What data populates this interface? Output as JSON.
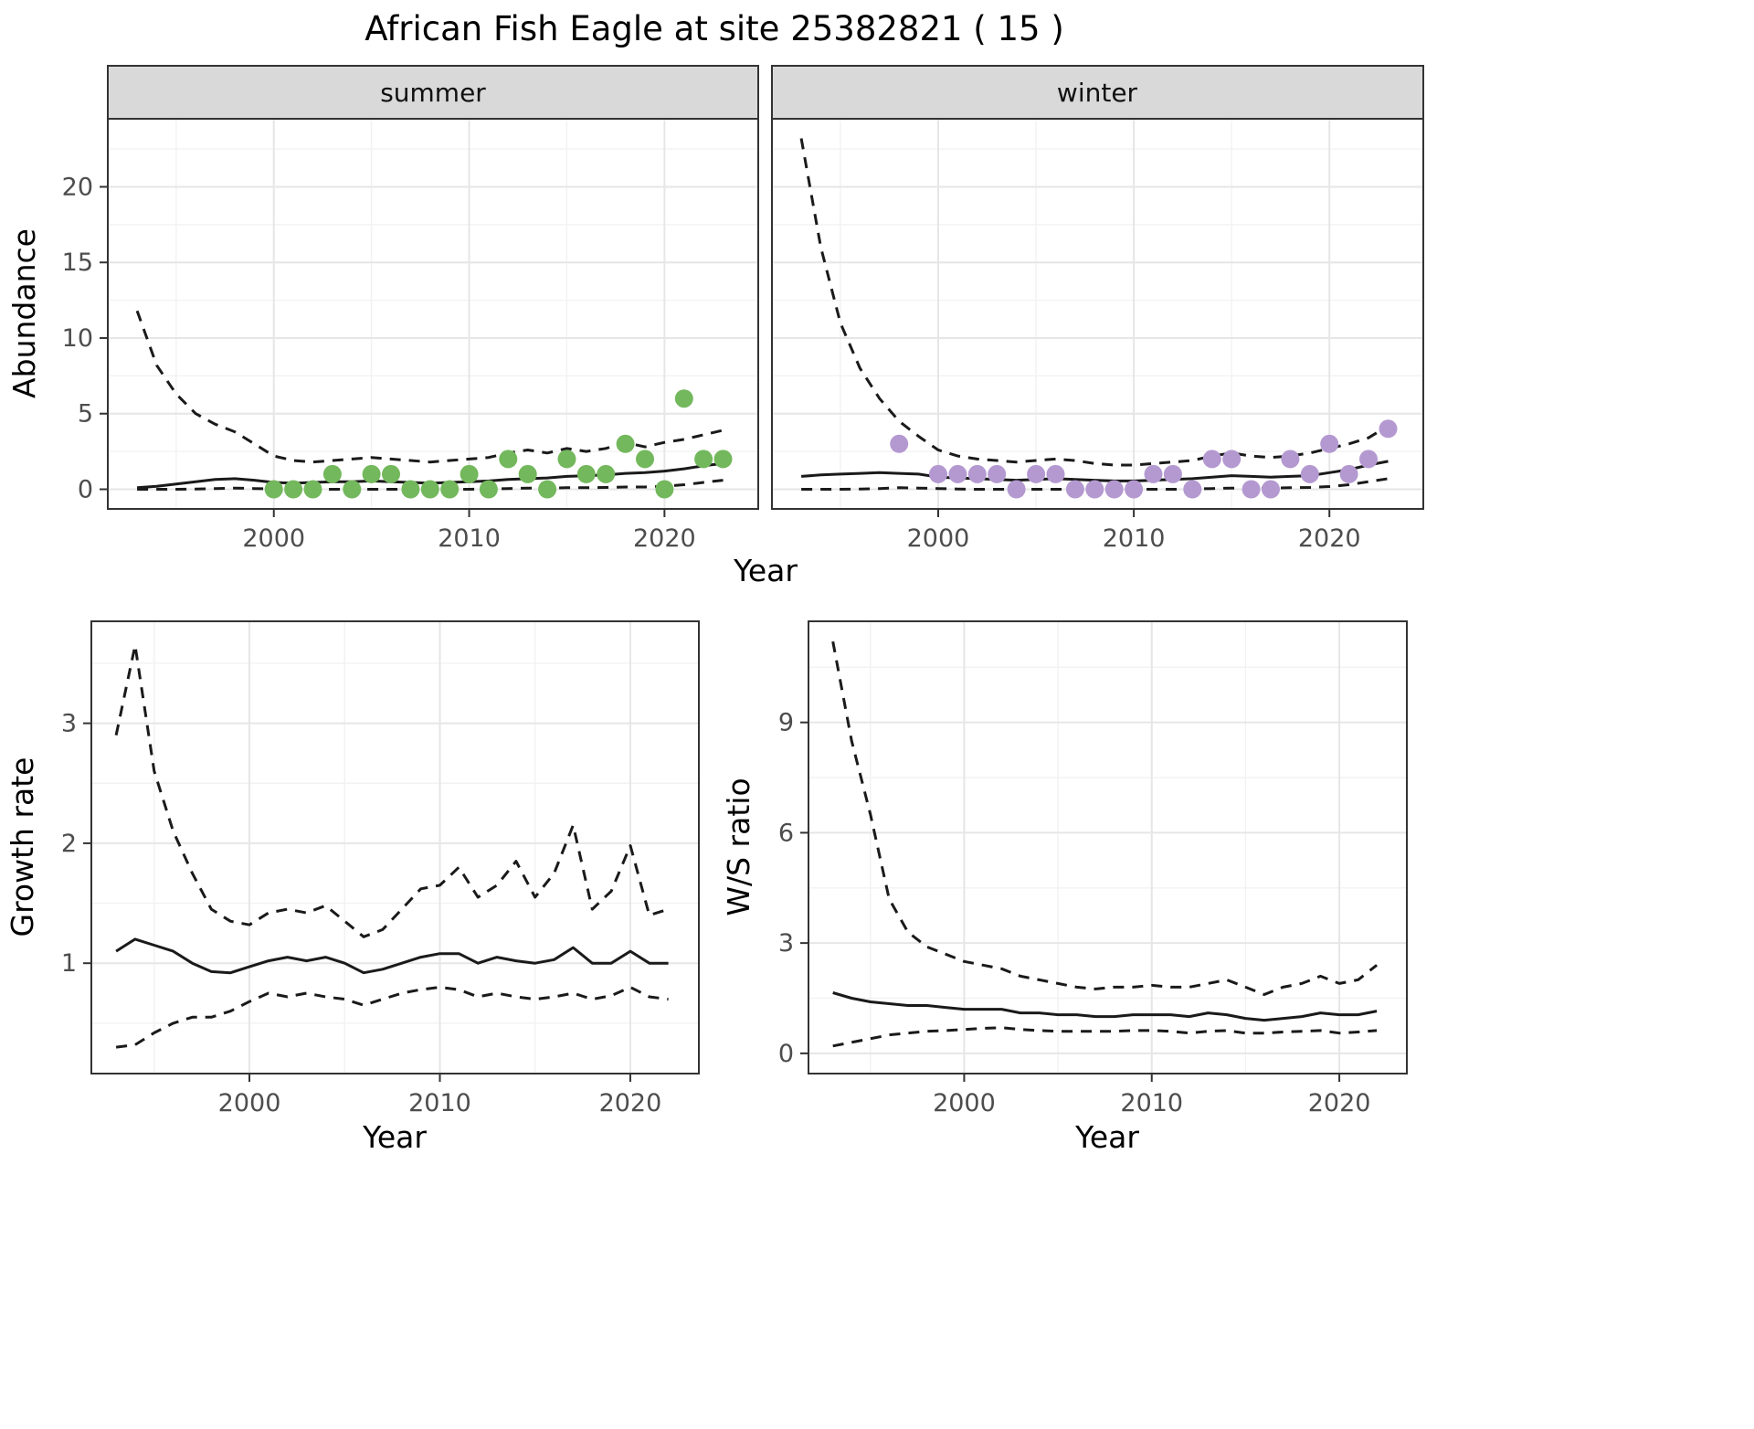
{
  "title": "African Fish Eagle at site 25382821 ( 15 )",
  "colors": {
    "summer_points": "#73b85c",
    "winter_points": "#b499d1",
    "line": "#1a1a1a",
    "strip_background": "#d9d9d9",
    "panel_border": "#333333",
    "grid_major": "#e6e6e6",
    "grid_minor": "#f2f2f2"
  },
  "chart_data": [
    {
      "type": "line",
      "facet": "summer",
      "ylabel": "Abundance",
      "xlabel": "Year",
      "xlim": [
        1991.5,
        2024.8
      ],
      "ylim": [
        -1.3,
        24.5
      ],
      "xticks": [
        2000,
        2010,
        2020
      ],
      "yticks": [
        0,
        5,
        10,
        15,
        20
      ],
      "grid": true,
      "legend": "none",
      "series": [
        {
          "name": "upper_ci",
          "style": "dashed",
          "x": [
            1993,
            1994,
            1995,
            1996,
            1997,
            1998,
            1999,
            2000,
            2001,
            2002,
            2003,
            2004,
            2005,
            2006,
            2007,
            2008,
            2009,
            2010,
            2011,
            2012,
            2013,
            2014,
            2015,
            2016,
            2017,
            2018,
            2019,
            2020,
            2021,
            2022,
            2023
          ],
          "y": [
            11.8,
            8.2,
            6.3,
            5,
            4.3,
            3.8,
            3,
            2.2,
            1.9,
            1.8,
            1.9,
            2,
            2.1,
            2,
            1.9,
            1.8,
            1.9,
            2,
            2.1,
            2.4,
            2.6,
            2.4,
            2.7,
            2.5,
            2.7,
            3.1,
            2.8,
            3.1,
            3.3,
            3.6,
            3.9
          ]
        },
        {
          "name": "median",
          "style": "solid",
          "x": [
            1993,
            1994,
            1995,
            1996,
            1997,
            1998,
            1999,
            2000,
            2001,
            2002,
            2003,
            2004,
            2005,
            2006,
            2007,
            2008,
            2009,
            2010,
            2011,
            2012,
            2013,
            2014,
            2015,
            2016,
            2017,
            2018,
            2019,
            2020,
            2021,
            2022,
            2023
          ],
          "y": [
            0.1,
            0.2,
            0.35,
            0.5,
            0.65,
            0.7,
            0.6,
            0.45,
            0.4,
            0.45,
            0.5,
            0.5,
            0.55,
            0.5,
            0.45,
            0.4,
            0.45,
            0.5,
            0.55,
            0.65,
            0.7,
            0.75,
            0.85,
            0.9,
            0.95,
            1.05,
            1.1,
            1.2,
            1.35,
            1.55,
            1.7
          ]
        },
        {
          "name": "lower_ci",
          "style": "dashed",
          "x": [
            1993,
            1994,
            1995,
            1996,
            1997,
            1998,
            1999,
            2000,
            2001,
            2002,
            2003,
            2004,
            2005,
            2006,
            2007,
            2008,
            2009,
            2010,
            2011,
            2012,
            2013,
            2014,
            2015,
            2016,
            2017,
            2018,
            2019,
            2020,
            2021,
            2022,
            2023
          ],
          "y": [
            0,
            0,
            0,
            0.02,
            0.05,
            0.08,
            0.05,
            0.02,
            0,
            0,
            0,
            0,
            0,
            0,
            0,
            0,
            0,
            0,
            0.02,
            0.05,
            0.08,
            0.08,
            0.1,
            0.1,
            0.12,
            0.15,
            0.15,
            0.2,
            0.3,
            0.45,
            0.6
          ]
        },
        {
          "name": "observed",
          "style": "points",
          "color": "#73b85c",
          "x": [
            2000,
            2001,
            2002,
            2003,
            2004,
            2005,
            2006,
            2007,
            2008,
            2009,
            2010,
            2011,
            2012,
            2013,
            2014,
            2015,
            2016,
            2017,
            2018,
            2019,
            2020,
            2021,
            2022,
            2023
          ],
          "y": [
            0,
            0,
            0,
            1,
            0,
            1,
            1,
            0,
            0,
            0,
            1,
            0,
            2,
            1,
            0,
            2,
            1,
            1,
            3,
            2,
            0,
            6,
            2,
            2
          ]
        }
      ]
    },
    {
      "type": "line",
      "facet": "winter",
      "ylabel": "Abundance",
      "xlabel": "Year",
      "xlim": [
        1991.5,
        2024.8
      ],
      "ylim": [
        -1.3,
        24.5
      ],
      "xticks": [
        2000,
        2010,
        2020
      ],
      "yticks": [
        0,
        5,
        10,
        15,
        20
      ],
      "grid": true,
      "legend": "none",
      "series": [
        {
          "name": "upper_ci",
          "style": "dashed",
          "x": [
            1993,
            1994,
            1995,
            1996,
            1997,
            1998,
            1999,
            2000,
            2001,
            2002,
            2003,
            2004,
            2005,
            2006,
            2007,
            2008,
            2009,
            2010,
            2011,
            2012,
            2013,
            2014,
            2015,
            2016,
            2017,
            2018,
            2019,
            2020,
            2021,
            2022,
            2023
          ],
          "y": [
            23.2,
            16,
            11,
            8,
            6,
            4.5,
            3.5,
            2.6,
            2.2,
            2,
            1.9,
            1.8,
            1.9,
            2,
            1.9,
            1.7,
            1.6,
            1.6,
            1.7,
            1.8,
            1.9,
            2.2,
            2.4,
            2.2,
            2.1,
            2.2,
            2.4,
            2.7,
            3,
            3.4,
            4.2
          ]
        },
        {
          "name": "median",
          "style": "solid",
          "x": [
            1993,
            1994,
            1995,
            1996,
            1997,
            1998,
            1999,
            2000,
            2001,
            2002,
            2003,
            2004,
            2005,
            2006,
            2007,
            2008,
            2009,
            2010,
            2011,
            2012,
            2013,
            2014,
            2015,
            2016,
            2017,
            2018,
            2019,
            2020,
            2021,
            2022,
            2023
          ],
          "y": [
            0.85,
            0.95,
            1,
            1.05,
            1.1,
            1.05,
            1,
            0.8,
            0.75,
            0.7,
            0.65,
            0.6,
            0.65,
            0.7,
            0.65,
            0.6,
            0.55,
            0.55,
            0.6,
            0.65,
            0.7,
            0.8,
            0.9,
            0.85,
            0.8,
            0.85,
            0.9,
            1.1,
            1.3,
            1.6,
            1.85
          ]
        },
        {
          "name": "lower_ci",
          "style": "dashed",
          "x": [
            1993,
            1994,
            1995,
            1996,
            1997,
            1998,
            1999,
            2000,
            2001,
            2002,
            2003,
            2004,
            2005,
            2006,
            2007,
            2008,
            2009,
            2010,
            2011,
            2012,
            2013,
            2014,
            2015,
            2016,
            2017,
            2018,
            2019,
            2020,
            2021,
            2022,
            2023
          ],
          "y": [
            0,
            0,
            0,
            0.02,
            0.05,
            0.1,
            0.08,
            0.05,
            0.02,
            0,
            0,
            0,
            0,
            0,
            0,
            0,
            0,
            0,
            0,
            0,
            0.02,
            0.05,
            0.08,
            0.08,
            0.08,
            0.1,
            0.12,
            0.18,
            0.3,
            0.5,
            0.7
          ]
        },
        {
          "name": "observed",
          "style": "points",
          "color": "#b499d1",
          "x": [
            1998,
            2000,
            2001,
            2002,
            2003,
            2004,
            2005,
            2006,
            2007,
            2008,
            2009,
            2010,
            2011,
            2012,
            2013,
            2014,
            2015,
            2016,
            2017,
            2018,
            2019,
            2020,
            2021,
            2022,
            2023
          ],
          "y": [
            3,
            1,
            1,
            1,
            1,
            0,
            1,
            1,
            0,
            0,
            0,
            0,
            1,
            1,
            0,
            2,
            2,
            0,
            0,
            2,
            1,
            3,
            1,
            2,
            4
          ]
        }
      ]
    },
    {
      "type": "line",
      "facet": "",
      "ylabel": "Growth rate",
      "xlabel": "Year",
      "xlim": [
        1991.7,
        2023.6
      ],
      "ylim": [
        0.08,
        3.85
      ],
      "xticks": [
        2000,
        2010,
        2020
      ],
      "yticks": [
        1,
        2,
        3
      ],
      "grid": true,
      "legend": "none",
      "series": [
        {
          "name": "upper_ci",
          "style": "dashed",
          "x": [
            1993,
            1994,
            1995,
            1996,
            1997,
            1998,
            1999,
            2000,
            2001,
            2002,
            2003,
            2004,
            2005,
            2006,
            2007,
            2008,
            2009,
            2010,
            2011,
            2012,
            2013,
            2014,
            2015,
            2016,
            2017,
            2018,
            2019,
            2020,
            2021,
            2022
          ],
          "y": [
            2.9,
            3.65,
            2.6,
            2.1,
            1.75,
            1.45,
            1.35,
            1.32,
            1.42,
            1.45,
            1.42,
            1.48,
            1.35,
            1.22,
            1.28,
            1.45,
            1.62,
            1.65,
            1.8,
            1.55,
            1.65,
            1.85,
            1.55,
            1.75,
            2.15,
            1.45,
            1.6,
            1.98,
            1.4,
            1.45
          ]
        },
        {
          "name": "median",
          "style": "solid",
          "x": [
            1993,
            1994,
            1995,
            1996,
            1997,
            1998,
            1999,
            2000,
            2001,
            2002,
            2003,
            2004,
            2005,
            2006,
            2007,
            2008,
            2009,
            2010,
            2011,
            2012,
            2013,
            2014,
            2015,
            2016,
            2017,
            2018,
            2019,
            2020,
            2021,
            2022
          ],
          "y": [
            1.1,
            1.2,
            1.15,
            1.1,
            1,
            0.93,
            0.92,
            0.97,
            1.02,
            1.05,
            1.02,
            1.05,
            1,
            0.92,
            0.95,
            1,
            1.05,
            1.08,
            1.08,
            1,
            1.05,
            1.02,
            1,
            1.03,
            1.13,
            1,
            1,
            1.1,
            1,
            1
          ]
        },
        {
          "name": "lower_ci",
          "style": "dashed",
          "x": [
            1993,
            1994,
            1995,
            1996,
            1997,
            1998,
            1999,
            2000,
            2001,
            2002,
            2003,
            2004,
            2005,
            2006,
            2007,
            2008,
            2009,
            2010,
            2011,
            2012,
            2013,
            2014,
            2015,
            2016,
            2017,
            2018,
            2019,
            2020,
            2021,
            2022
          ],
          "y": [
            0.3,
            0.32,
            0.42,
            0.5,
            0.55,
            0.55,
            0.6,
            0.68,
            0.75,
            0.72,
            0.75,
            0.72,
            0.7,
            0.65,
            0.7,
            0.75,
            0.78,
            0.8,
            0.78,
            0.72,
            0.75,
            0.72,
            0.7,
            0.72,
            0.75,
            0.7,
            0.73,
            0.8,
            0.72,
            0.7
          ]
        }
      ]
    },
    {
      "type": "line",
      "facet": "",
      "ylabel": "W/S ratio",
      "xlabel": "Year",
      "xlim": [
        1991.7,
        2023.6
      ],
      "ylim": [
        -0.55,
        11.75
      ],
      "xticks": [
        2000,
        2010,
        2020
      ],
      "yticks": [
        0,
        3,
        6,
        9
      ],
      "grid": true,
      "legend": "none",
      "series": [
        {
          "name": "upper_ci",
          "style": "dashed",
          "x": [
            1993,
            1994,
            1995,
            1996,
            1997,
            1998,
            1999,
            2000,
            2001,
            2002,
            2003,
            2004,
            2005,
            2006,
            2007,
            2008,
            2009,
            2010,
            2011,
            2012,
            2013,
            2014,
            2015,
            2016,
            2017,
            2018,
            2019,
            2020,
            2021,
            2022
          ],
          "y": [
            11.2,
            8.5,
            6.5,
            4.2,
            3.3,
            2.9,
            2.7,
            2.5,
            2.4,
            2.3,
            2.1,
            2,
            1.9,
            1.8,
            1.75,
            1.8,
            1.8,
            1.85,
            1.8,
            1.8,
            1.9,
            2,
            1.8,
            1.6,
            1.8,
            1.9,
            2.1,
            1.9,
            2,
            2.4
          ]
        },
        {
          "name": "median",
          "style": "solid",
          "x": [
            1993,
            1994,
            1995,
            1996,
            1997,
            1998,
            1999,
            2000,
            2001,
            2002,
            2003,
            2004,
            2005,
            2006,
            2007,
            2008,
            2009,
            2010,
            2011,
            2012,
            2013,
            2014,
            2015,
            2016,
            2017,
            2018,
            2019,
            2020,
            2021,
            2022
          ],
          "y": [
            1.65,
            1.5,
            1.4,
            1.35,
            1.3,
            1.3,
            1.25,
            1.2,
            1.2,
            1.2,
            1.1,
            1.1,
            1.05,
            1.05,
            1,
            1,
            1.05,
            1.05,
            1.05,
            1,
            1.1,
            1.05,
            0.95,
            0.9,
            0.95,
            1,
            1.1,
            1.05,
            1.05,
            1.15
          ]
        },
        {
          "name": "lower_ci",
          "style": "dashed",
          "x": [
            1993,
            1994,
            1995,
            1996,
            1997,
            1998,
            1999,
            2000,
            2001,
            2002,
            2003,
            2004,
            2005,
            2006,
            2007,
            2008,
            2009,
            2010,
            2011,
            2012,
            2013,
            2014,
            2015,
            2016,
            2017,
            2018,
            2019,
            2020,
            2021,
            2022
          ],
          "y": [
            0.2,
            0.3,
            0.4,
            0.5,
            0.55,
            0.6,
            0.62,
            0.65,
            0.68,
            0.7,
            0.65,
            0.62,
            0.6,
            0.6,
            0.6,
            0.6,
            0.62,
            0.62,
            0.6,
            0.55,
            0.6,
            0.62,
            0.55,
            0.55,
            0.58,
            0.6,
            0.62,
            0.55,
            0.58,
            0.62
          ]
        }
      ]
    }
  ]
}
